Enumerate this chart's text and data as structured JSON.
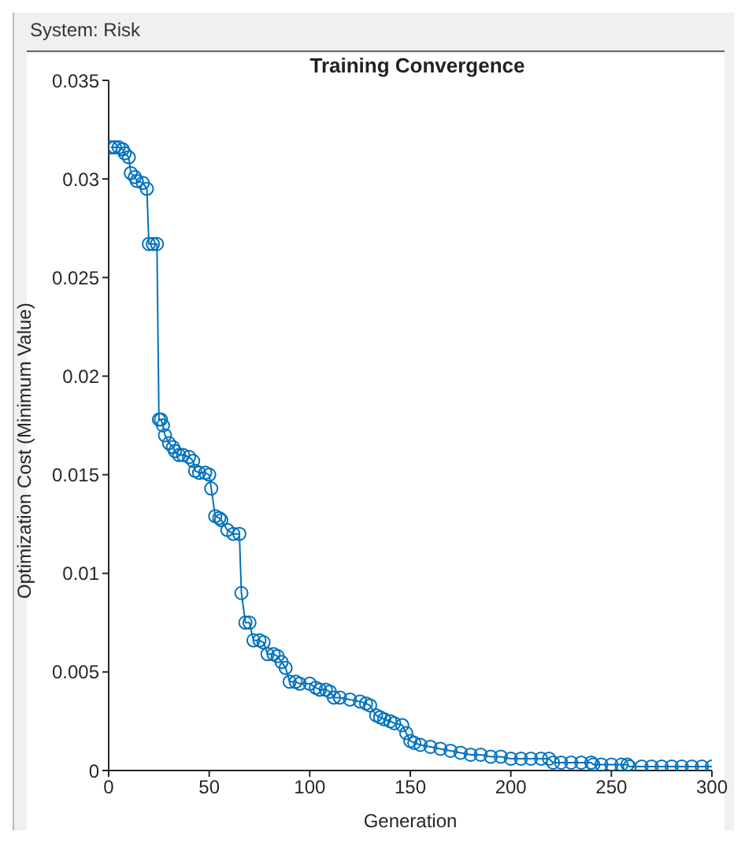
{
  "chart_data": {
    "type": "line",
    "title": "Training Convergence",
    "annotations": [
      "System: Risk"
    ],
    "xlabel": "Generation",
    "ylabel": "Optimization Cost (Minimum Value)",
    "x": [
      1,
      3,
      5,
      7,
      8,
      10,
      11,
      13,
      14,
      17,
      19,
      20,
      22,
      24,
      25,
      26,
      27,
      28,
      30,
      32,
      33,
      35,
      37,
      40,
      42,
      43,
      45,
      48,
      50,
      51,
      53,
      55,
      56,
      59,
      62,
      65,
      66,
      68,
      70,
      72,
      75,
      77,
      79,
      82,
      84,
      86,
      88,
      90,
      93,
      95,
      100,
      103,
      105,
      108,
      110,
      112,
      115,
      120,
      125,
      128,
      130,
      133,
      135,
      137,
      140,
      142,
      146,
      148,
      150,
      152,
      155,
      160,
      165,
      170,
      175,
      180,
      185,
      190,
      195,
      200,
      205,
      210,
      215,
      219,
      221,
      225,
      230,
      235,
      240,
      241,
      245,
      250,
      255,
      258,
      259,
      265,
      270,
      275,
      280,
      285,
      290,
      295,
      300
    ],
    "series": [
      {
        "color": "#0072bd",
        "values": [
          0.0316,
          0.0316,
          0.0316,
          0.0315,
          0.0313,
          0.0311,
          0.0303,
          0.0301,
          0.0299,
          0.0298,
          0.0295,
          0.0267,
          0.0267,
          0.0267,
          0.0178,
          0.0178,
          0.0175,
          0.017,
          0.0166,
          0.0164,
          0.0162,
          0.016,
          0.016,
          0.0159,
          0.0157,
          0.0152,
          0.0151,
          0.0151,
          0.015,
          0.0143,
          0.0129,
          0.0128,
          0.0127,
          0.0122,
          0.012,
          0.012,
          0.009,
          0.0075,
          0.0075,
          0.0066,
          0.0066,
          0.0065,
          0.0059,
          0.0059,
          0.0058,
          0.0055,
          0.0052,
          0.0045,
          0.0045,
          0.0044,
          0.0044,
          0.0042,
          0.0041,
          0.0041,
          0.004,
          0.0037,
          0.0037,
          0.0036,
          0.0035,
          0.0034,
          0.0033,
          0.0028,
          0.0027,
          0.0026,
          0.0025,
          0.0024,
          0.0023,
          0.0019,
          0.0015,
          0.0014,
          0.0013,
          0.0012,
          0.0011,
          0.001,
          0.0009,
          0.0008,
          0.0008,
          0.0007,
          0.0007,
          0.0006,
          0.0006,
          0.0006,
          0.0006,
          0.0006,
          0.0004,
          0.0004,
          0.0004,
          0.0004,
          0.0004,
          0.0003,
          0.0003,
          0.0003,
          0.0003,
          0.0003,
          0.0002,
          0.0002,
          0.0002,
          0.0002,
          0.0002,
          0.0002,
          0.0002,
          0.0002,
          0.0002
        ]
      }
    ],
    "xlim": [
      0,
      300
    ],
    "xticks": [
      0,
      50,
      100,
      150,
      200,
      250,
      300
    ],
    "ylim": [
      0,
      0.035
    ],
    "yticks": [
      0,
      0.005,
      0.01,
      0.015,
      0.02,
      0.025,
      0.03,
      0.035
    ],
    "marker": "circle",
    "line_style": "solid"
  }
}
